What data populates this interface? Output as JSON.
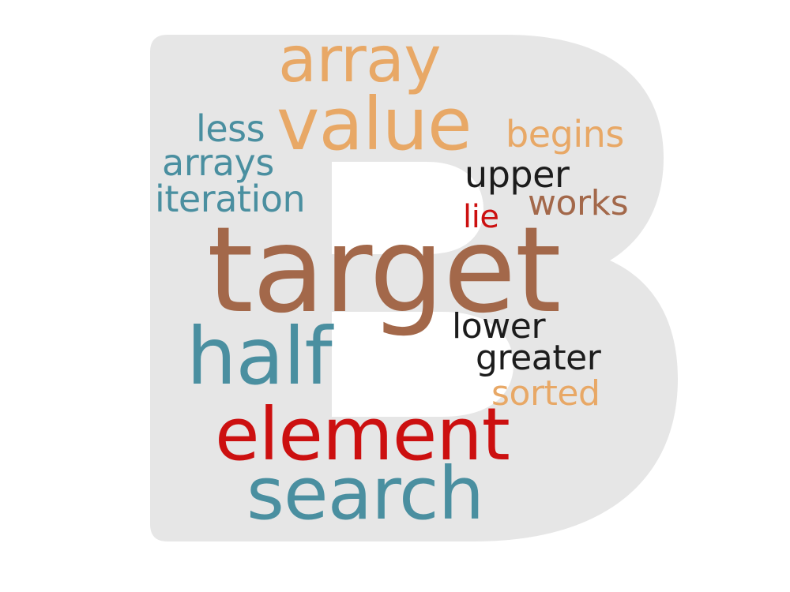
{
  "colors": {
    "background": "#ffffff",
    "letter_fill": "#e6e6e6",
    "teal": "#4a8fa0",
    "orange": "#e8a866",
    "brown": "#a3684a",
    "red": "#cc1010",
    "black": "#1c1c1c"
  },
  "words": [
    {
      "id": "array",
      "text": "array",
      "color": "#e8a866"
    },
    {
      "id": "value",
      "text": "value",
      "color": "#e8a866"
    },
    {
      "id": "less",
      "text": "less",
      "color": "#4a8fa0"
    },
    {
      "id": "begins",
      "text": "begins",
      "color": "#e8a866"
    },
    {
      "id": "arrays",
      "text": "arrays",
      "color": "#4a8fa0"
    },
    {
      "id": "upper",
      "text": "upper",
      "color": "#1c1c1c"
    },
    {
      "id": "iteration",
      "text": "iteration",
      "color": "#4a8fa0"
    },
    {
      "id": "works",
      "text": "works",
      "color": "#a3684a"
    },
    {
      "id": "lie",
      "text": "lie",
      "color": "#cc1010"
    },
    {
      "id": "target",
      "text": "target",
      "color": "#a3684a"
    },
    {
      "id": "lower",
      "text": "lower",
      "color": "#1c1c1c"
    },
    {
      "id": "half",
      "text": "half",
      "color": "#4a8fa0"
    },
    {
      "id": "greater",
      "text": "greater",
      "color": "#1c1c1c"
    },
    {
      "id": "sorted",
      "text": "sorted",
      "color": "#e8a866"
    },
    {
      "id": "element",
      "text": "element",
      "color": "#cc1010"
    },
    {
      "id": "search",
      "text": "search",
      "color": "#4a8fa0"
    }
  ]
}
